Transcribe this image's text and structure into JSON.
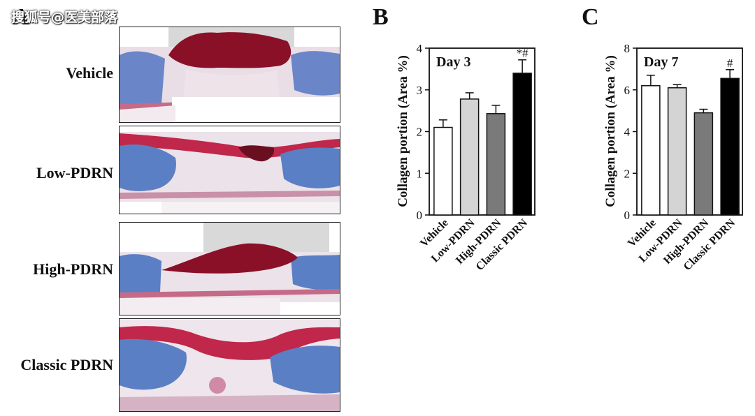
{
  "watermark": "搜狐号@医美部落",
  "panels": {
    "a": "A",
    "b": "B",
    "c": "C"
  },
  "histology": [
    {
      "label": "Vehicle"
    },
    {
      "label": "Low-PDRN"
    },
    {
      "label": "High-PDRN"
    },
    {
      "label": "Classic PDRN"
    }
  ],
  "colors": {
    "collagen_blue": "#5b7fc4",
    "keratin_red": "#b9213c",
    "scab": "#8a1028",
    "bar_vehicle": "#ffffff",
    "bar_low": "#d4d4d4",
    "bar_high": "#7a7a7a",
    "bar_classic": "#000000"
  },
  "chart_data": [
    {
      "type": "bar",
      "panel": "B",
      "title": "Day 3",
      "ylabel": "Collagen portion (Area %)",
      "categories": [
        "Vehicle",
        "Low-PDRN",
        "High-PDRN",
        "Classic PDRN"
      ],
      "values": [
        2.1,
        2.78,
        2.43,
        3.4
      ],
      "errors": [
        0.18,
        0.15,
        0.2,
        0.32
      ],
      "annotations": [
        "",
        "",
        "",
        "*#"
      ],
      "ylim": [
        0,
        4
      ],
      "yticks": [
        "0",
        "1",
        "2",
        "3",
        "4"
      ],
      "yticks_values": [
        0,
        1,
        2,
        3,
        4
      ]
    },
    {
      "type": "bar",
      "panel": "C",
      "title": "Day 7",
      "ylabel": "Collagen portion (Area %)",
      "categories": [
        "Vehicle",
        "Low-PDRN",
        "High-PDRN",
        "Classic PDRN"
      ],
      "values": [
        6.2,
        6.1,
        4.9,
        6.55
      ],
      "errors": [
        0.5,
        0.15,
        0.17,
        0.42
      ],
      "annotations": [
        "",
        "",
        "",
        "#"
      ],
      "ylim": [
        0,
        8
      ],
      "yticks": [
        "0",
        "2",
        "4",
        "6",
        "8"
      ],
      "yticks_values": [
        0,
        2,
        4,
        6,
        8
      ]
    }
  ]
}
